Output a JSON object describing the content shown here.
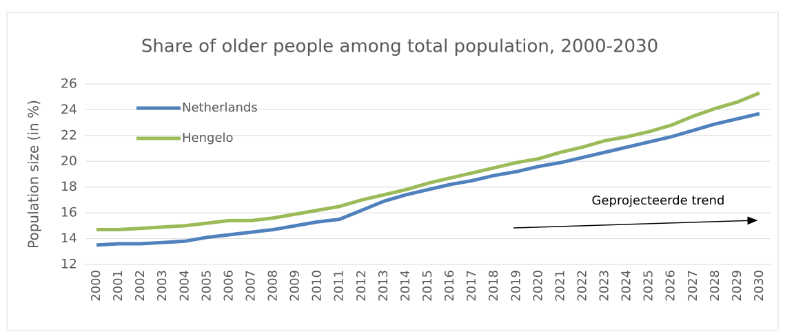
{
  "chart_data": {
    "type": "line",
    "title": "Share of older people among total population, 2000-2030",
    "y_label": "Population size (in %)",
    "annotation": "Geprojecteerde trend",
    "categories": [
      "2000",
      "2001",
      "2002",
      "2003",
      "2004",
      "2005",
      "2006",
      "2007",
      "2008",
      "2009",
      "2010",
      "2011",
      "2012",
      "2013",
      "2014",
      "2015",
      "2016",
      "2017",
      "2018",
      "2019",
      "2020",
      "2021",
      "2022",
      "2023",
      "2024",
      "2025",
      "2026",
      "2027",
      "2028",
      "2029",
      "2030"
    ],
    "series": [
      {
        "name": "Netherlands",
        "color": "#4f81bd",
        "values": [
          13.5,
          13.6,
          13.6,
          13.7,
          13.8,
          14.1,
          14.3,
          14.5,
          14.7,
          15.0,
          15.3,
          15.5,
          16.2,
          16.9,
          17.4,
          17.8,
          18.2,
          18.5,
          18.9,
          19.2,
          19.6,
          19.9,
          20.3,
          20.7,
          21.1,
          21.5,
          21.9,
          22.4,
          22.9,
          23.3,
          23.7
        ]
      },
      {
        "name": "Hengelo",
        "color": "#9bbb59",
        "values": [
          14.7,
          14.7,
          14.8,
          14.9,
          15.0,
          15.2,
          15.4,
          15.4,
          15.6,
          15.9,
          16.2,
          16.5,
          17.0,
          17.4,
          17.8,
          18.3,
          18.7,
          19.1,
          19.5,
          19.9,
          20.2,
          20.7,
          21.1,
          21.6,
          21.9,
          22.3,
          22.8,
          23.5,
          24.1,
          24.6,
          25.3
        ]
      }
    ],
    "ylim": [
      12,
      26
    ],
    "yticks": [
      12,
      14,
      16,
      18,
      20,
      22,
      24,
      26
    ],
    "grid": true,
    "legend": "top-left"
  }
}
